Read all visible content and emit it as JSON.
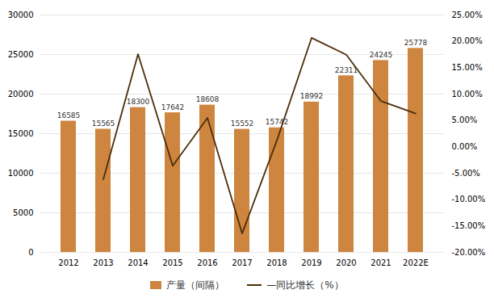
{
  "chart_data": {
    "type": "bar",
    "categories": [
      "2012",
      "2013",
      "2014",
      "2015",
      "2016",
      "2017",
      "2018",
      "2019",
      "2020",
      "2021",
      "2022E"
    ],
    "series": [
      {
        "name": "产量（间隔）",
        "type": "bar",
        "color": "#CD853F",
        "values": [
          16585,
          15565,
          18300,
          17642,
          18608,
          15552,
          15742,
          18992,
          22311,
          24245,
          25778
        ]
      },
      {
        "name": "—同比增长（%）",
        "type": "line",
        "color": "#4B2E0A",
        "axis": "y2",
        "values": [
          null,
          -6.15,
          17.57,
          -3.59,
          5.48,
          -16.42,
          1.22,
          20.65,
          17.47,
          8.67,
          6.32
        ]
      }
    ],
    "ylim": [
      0,
      30000
    ],
    "yticks": [
      0,
      5000,
      10000,
      15000,
      20000,
      25000,
      30000
    ],
    "y2lim": [
      -20,
      25
    ],
    "y2ticks": [
      {
        "value": -20,
        "label": "-20.00%"
      },
      {
        "value": -15,
        "label": "-15.00%"
      },
      {
        "value": -10,
        "label": "-10.00%"
      },
      {
        "value": -5,
        "label": "-5.00%"
      },
      {
        "value": 0,
        "label": "0.00%"
      },
      {
        "value": 5,
        "label": "5.00%"
      },
      {
        "value": 10,
        "label": "10.00%"
      },
      {
        "value": 15,
        "label": "15.00%"
      },
      {
        "value": 20,
        "label": "20.00%"
      },
      {
        "value": 25,
        "label": "25.00%"
      }
    ],
    "grid": true,
    "data_labels": true,
    "legend": "bottom"
  }
}
